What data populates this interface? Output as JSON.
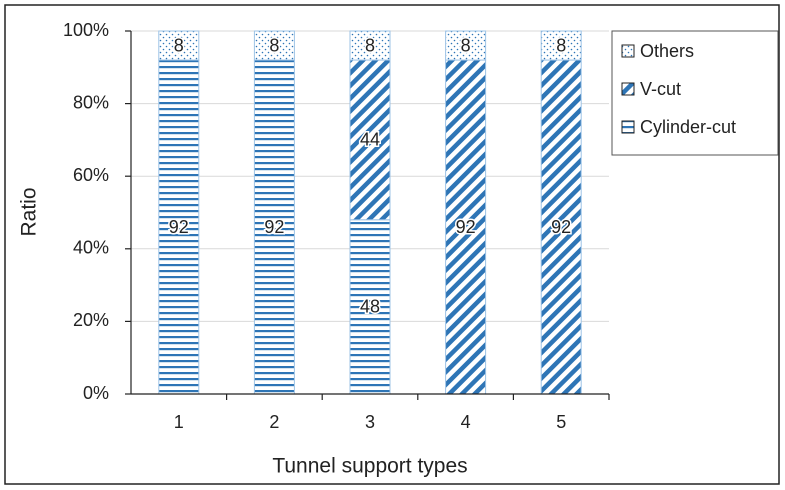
{
  "chart_data": {
    "type": "stacked-bar",
    "x_label": "Tunnel support types",
    "y_label": "Ratio",
    "categories": [
      "1",
      "2",
      "3",
      "4",
      "5"
    ],
    "series": [
      {
        "name": "Cylinder-cut",
        "color": "#2e75b6",
        "pattern": "horizontal",
        "values": [
          92,
          92,
          48,
          null,
          null
        ]
      },
      {
        "name": "V-cut",
        "color": "#2e75b6",
        "pattern": "diagonal",
        "values": [
          null,
          null,
          44,
          92,
          92
        ]
      },
      {
        "name": "Others",
        "color": "#2e75b6",
        "pattern": "dots",
        "values": [
          8,
          8,
          8,
          8,
          8
        ]
      }
    ],
    "ylim": [
      0,
      100
    ],
    "yticks": [
      {
        "value": 0,
        "label": "0%"
      },
      {
        "value": 20,
        "label": "20%"
      },
      {
        "value": 40,
        "label": "40%"
      },
      {
        "value": 60,
        "label": "60%"
      },
      {
        "value": 80,
        "label": "80%"
      },
      {
        "value": 100,
        "label": "100%"
      }
    ],
    "grid": true,
    "legend": "right"
  }
}
